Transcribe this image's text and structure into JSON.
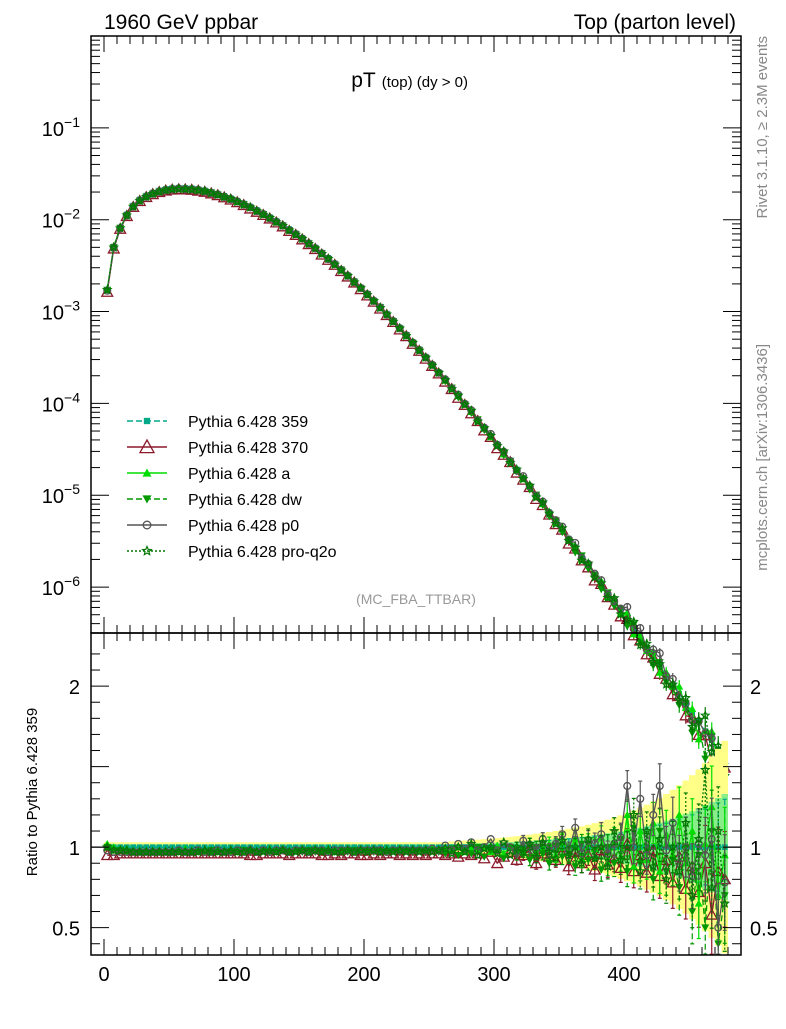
{
  "header": {
    "left": "1960 GeV ppbar",
    "right": "Top (parton level)"
  },
  "side_labels": {
    "rivet": "Rivet 3.1.10, ≥ 2.3M events",
    "mcplots": "mcplots.cern.ch [arXiv:1306.3436]"
  },
  "colors": {
    "359": "#00aa88",
    "370": "#8b1a2a",
    "a": "#00dd00",
    "dw": "#009900",
    "p0": "#555555",
    "pro-q2o": "#007700",
    "band_yellow": "#ffff88",
    "band_green": "#88ee88"
  },
  "chart_data": {
    "type": "line",
    "title": "pT",
    "title_sub": "(top) (dy > 0)",
    "watermark": "(MC_FBA_TTBAR)",
    "ylabel_ratio": "Ratio to Pythia 6.428 359",
    "x_ticks": [
      "0",
      "100",
      "200",
      "300",
      "400"
    ],
    "xlim": [
      -10,
      490
    ],
    "main_ylim_log10": [
      -6.5,
      0.0
    ],
    "main_y_ticks": [
      {
        "base": "10",
        "exp": "−1",
        "value": 0.1
      },
      {
        "base": "10",
        "exp": "−2",
        "value": 0.01
      },
      {
        "base": "10",
        "exp": "−3",
        "value": 0.001
      },
      {
        "base": "10",
        "exp": "−4",
        "value": 0.0001
      },
      {
        "base": "10",
        "exp": "−5",
        "value": 1e-05
      },
      {
        "base": "10",
        "exp": "−6",
        "value": 1e-06
      }
    ],
    "ratio_ylim": [
      0.33,
      2.33
    ],
    "ratio_y_ticks": [
      "0.5",
      "1",
      "2"
    ],
    "legend": [
      {
        "key": "359",
        "label": "Pythia 6.428 359"
      },
      {
        "key": "370",
        "label": "Pythia 6.428 370"
      },
      {
        "key": "a",
        "label": "Pythia 6.428 a"
      },
      {
        "key": "dw",
        "label": "Pythia 6.428 dw"
      },
      {
        "key": "p0",
        "label": "Pythia 6.428 p0"
      },
      {
        "key": "pro-q2o",
        "label": "Pythia 6.428 pro-q2o"
      }
    ],
    "x": [
      2.5,
      7.5,
      12.5,
      17.5,
      22.5,
      27.5,
      32.5,
      37.5,
      42.5,
      47.5,
      52.5,
      57.5,
      62.5,
      67.5,
      72.5,
      77.5,
      82.5,
      87.5,
      92.5,
      97.5,
      102.5,
      107.5,
      112.5,
      117.5,
      122.5,
      127.5,
      132.5,
      137.5,
      142.5,
      147.5,
      152.5,
      157.5,
      162.5,
      167.5,
      172.5,
      177.5,
      182.5,
      187.5,
      192.5,
      197.5,
      202.5,
      207.5,
      212.5,
      217.5,
      222.5,
      227.5,
      232.5,
      237.5,
      242.5,
      247.5,
      252.5,
      257.5,
      262.5,
      267.5,
      272.5,
      277.5,
      282.5,
      287.5,
      292.5,
      297.5,
      302.5,
      307.5,
      312.5,
      317.5,
      322.5,
      327.5,
      332.5,
      337.5,
      342.5,
      347.5,
      352.5,
      357.5,
      362.5,
      367.5,
      372.5,
      377.5,
      382.5,
      387.5,
      392.5,
      397.5,
      402.5,
      407.5,
      412.5,
      417.5,
      422.5,
      427.5,
      432.5,
      437.5,
      442.5,
      447.5,
      452.5,
      457.5,
      462.5,
      467.5,
      472.5,
      477.5
    ],
    "reference": [
      0.00172,
      0.0051,
      0.00826,
      0.0114,
      0.0143,
      0.0166,
      0.0183,
      0.0197,
      0.0208,
      0.0216,
      0.0221,
      0.0223,
      0.0222,
      0.022,
      0.0215,
      0.0209,
      0.0201,
      0.0192,
      0.0182,
      0.0172,
      0.0161,
      0.015,
      0.0139,
      0.0128,
      0.0117,
      0.0107,
      0.0097,
      0.00878,
      0.00791,
      0.0071,
      0.00634,
      0.00563,
      0.00498,
      0.00438,
      0.00384,
      0.00335,
      0.0029,
      0.0025,
      0.00215,
      0.00184,
      0.00157,
      0.00133,
      0.00113,
      0.00095,
      0.0008,
      0.00067,
      0.00056,
      0.000467,
      0.000388,
      0.000322,
      0.000266,
      0.00022,
      0.000181,
      0.000149,
      0.000122,
      0.0001,
      8.18e-05,
      6.68e-05,
      5.44e-05,
      4.43e-05,
      3.6e-05,
      2.92e-05,
      2.36e-05,
      1.91e-05,
      1.55e-05,
      1.25e-05,
      1.01e-05,
      8.12e-06,
      6.53e-06,
      5.25e-06,
      4.21e-06,
      3.37e-06,
      2.7e-06,
      2.16e-06,
      1.72e-06,
      1.37e-06,
      1.1e-06,
      8.7e-07,
      6.9e-07,
      5.5e-07,
      4.4e-07,
      3.5e-07,
      2.75e-07,
      2.2e-07,
      1.74e-07,
      1.38e-07,
      1.09e-07,
      8.7e-08,
      6.9e-08,
      5.4e-08,
      4.3e-08,
      3.4e-08,
      2.7e-08,
      2.15e-08,
      1.7e-08,
      1.35e-08
    ],
    "band_yellow_half": [
      0.03,
      0.03,
      0.03,
      0.03,
      0.03,
      0.03,
      0.03,
      0.03,
      0.03,
      0.03,
      0.03,
      0.03,
      0.03,
      0.03,
      0.03,
      0.03,
      0.03,
      0.03,
      0.03,
      0.03,
      0.03,
      0.03,
      0.03,
      0.03,
      0.03,
      0.03,
      0.03,
      0.03,
      0.03,
      0.03,
      0.03,
      0.03,
      0.03,
      0.03,
      0.03,
      0.03,
      0.03,
      0.03,
      0.03,
      0.03,
      0.03,
      0.03,
      0.03,
      0.03,
      0.03,
      0.03,
      0.03,
      0.03,
      0.03,
      0.03,
      0.03,
      0.03,
      0.032,
      0.035,
      0.038,
      0.041,
      0.044,
      0.047,
      0.05,
      0.053,
      0.056,
      0.06,
      0.064,
      0.068,
      0.073,
      0.078,
      0.083,
      0.088,
      0.094,
      0.1,
      0.107,
      0.114,
      0.122,
      0.13,
      0.139,
      0.149,
      0.16,
      0.171,
      0.184,
      0.197,
      0.212,
      0.228,
      0.245,
      0.264,
      0.284,
      0.306,
      0.33,
      0.356,
      0.384,
      0.414,
      0.447,
      0.483,
      0.522,
      0.564,
      0.61,
      0.66
    ],
    "band_green_half": [
      0.015,
      0.015,
      0.015,
      0.015,
      0.015,
      0.015,
      0.015,
      0.015,
      0.015,
      0.015,
      0.015,
      0.015,
      0.015,
      0.015,
      0.015,
      0.015,
      0.015,
      0.015,
      0.015,
      0.015,
      0.015,
      0.015,
      0.015,
      0.015,
      0.015,
      0.015,
      0.015,
      0.015,
      0.015,
      0.015,
      0.015,
      0.015,
      0.015,
      0.015,
      0.015,
      0.015,
      0.015,
      0.015,
      0.015,
      0.015,
      0.015,
      0.015,
      0.015,
      0.015,
      0.015,
      0.015,
      0.015,
      0.015,
      0.015,
      0.015,
      0.015,
      0.015,
      0.016,
      0.018,
      0.019,
      0.02,
      0.022,
      0.024,
      0.025,
      0.027,
      0.028,
      0.03,
      0.032,
      0.034,
      0.036,
      0.039,
      0.041,
      0.044,
      0.047,
      0.05,
      0.054,
      0.057,
      0.061,
      0.065,
      0.07,
      0.075,
      0.08,
      0.086,
      0.092,
      0.099,
      0.106,
      0.114,
      0.122,
      0.132,
      0.142,
      0.153,
      0.165,
      0.178,
      0.192,
      0.207,
      0.223,
      0.242,
      0.261,
      0.282,
      0.305,
      0.33
    ],
    "series": [
      {
        "key": "359",
        "name": "Pythia 6.428 359",
        "ratio": [
          1.0,
          1.0,
          1.0,
          1.0,
          1.0,
          1.0,
          1.0,
          1.0,
          1.0,
          1.0,
          1.0,
          1.0,
          1.0,
          1.0,
          1.0,
          1.0,
          1.0,
          1.0,
          1.0,
          1.0,
          1.0,
          1.0,
          1.0,
          1.0,
          1.0,
          1.0,
          1.0,
          1.0,
          1.0,
          1.0,
          1.0,
          1.0,
          1.0,
          1.0,
          1.0,
          1.0,
          1.0,
          1.0,
          1.0,
          1.0,
          1.0,
          1.0,
          1.0,
          1.0,
          1.0,
          1.0,
          1.0,
          1.0,
          1.0,
          1.0,
          1.0,
          1.0,
          1.0,
          1.0,
          1.0,
          1.0,
          1.0,
          1.0,
          1.0,
          1.0,
          1.0,
          1.0,
          1.0,
          1.0,
          1.0,
          1.0,
          1.0,
          1.0,
          1.0,
          1.0,
          1.0,
          1.0,
          1.0,
          1.0,
          1.0,
          1.0,
          1.0,
          1.0,
          1.0,
          1.0,
          1.0,
          1.0,
          1.0,
          1.0,
          1.0,
          1.0,
          1.0,
          1.0,
          1.0,
          1.0,
          1.0,
          1.0,
          1.0,
          1.0,
          1.0,
          1.0
        ]
      },
      {
        "key": "370",
        "name": "Pythia 6.428 370",
        "ratio": [
          0.95,
          0.95,
          0.96,
          0.96,
          0.96,
          0.96,
          0.96,
          0.96,
          0.96,
          0.96,
          0.96,
          0.96,
          0.96,
          0.96,
          0.96,
          0.96,
          0.96,
          0.96,
          0.96,
          0.96,
          0.96,
          0.96,
          0.95,
          0.95,
          0.96,
          0.96,
          0.96,
          0.96,
          0.95,
          0.96,
          0.96,
          0.96,
          0.96,
          0.95,
          0.95,
          0.96,
          0.95,
          0.96,
          0.96,
          0.95,
          0.95,
          0.96,
          0.95,
          0.96,
          0.96,
          0.95,
          0.96,
          0.95,
          0.96,
          0.95,
          0.96,
          0.96,
          0.95,
          0.96,
          0.94,
          0.96,
          0.95,
          0.96,
          0.93,
          0.97,
          0.9,
          0.94,
          0.97,
          0.92,
          0.95,
          0.98,
          0.9,
          0.96,
          0.94,
          0.92,
          1.0,
          0.88,
          0.97,
          0.9,
          0.95,
          0.86,
          0.98,
          0.89,
          0.93,
          0.87,
          1.02,
          0.85,
          0.95,
          0.84,
          0.98,
          0.82,
          0.92,
          0.78,
          0.94,
          0.74,
          0.88,
          0.72,
          0.9,
          0.58,
          0.85,
          0.8
        ]
      },
      {
        "key": "a",
        "name": "Pythia 6.428 a",
        "ratio": [
          1.02,
          1.0,
          0.99,
          0.99,
          0.98,
          0.98,
          0.98,
          0.98,
          0.98,
          0.98,
          0.98,
          0.98,
          0.99,
          0.98,
          0.98,
          0.98,
          0.98,
          0.98,
          0.98,
          0.98,
          0.98,
          0.98,
          0.98,
          0.98,
          0.98,
          0.99,
          0.98,
          0.99,
          0.98,
          0.98,
          0.99,
          0.98,
          0.99,
          0.98,
          0.99,
          0.98,
          0.98,
          0.99,
          0.98,
          0.98,
          0.99,
          0.98,
          0.98,
          0.99,
          0.98,
          0.99,
          0.98,
          0.98,
          0.99,
          0.98,
          0.99,
          0.98,
          0.99,
          0.98,
          1.0,
          0.97,
          0.99,
          0.98,
          1.0,
          0.97,
          1.01,
          0.96,
          1.0,
          0.98,
          0.97,
          1.02,
          0.96,
          0.99,
          1.02,
          0.95,
          1.03,
          0.97,
          1.05,
          0.93,
          1.02,
          0.99,
          1.06,
          0.9,
          1.04,
          0.94,
          1.2,
          0.88,
          1.1,
          0.92,
          1.15,
          0.85,
          1.08,
          0.95,
          1.2,
          0.9,
          1.1,
          0.65,
          1.02,
          1.25,
          0.7,
          0.95
        ]
      },
      {
        "key": "dw",
        "name": "Pythia 6.428 dw",
        "ratio": [
          1.0,
          0.98,
          0.98,
          0.97,
          0.97,
          0.97,
          0.97,
          0.97,
          0.97,
          0.97,
          0.97,
          0.97,
          0.97,
          0.97,
          0.97,
          0.97,
          0.98,
          0.97,
          0.97,
          0.97,
          0.97,
          0.98,
          0.97,
          0.97,
          0.98,
          0.97,
          0.97,
          0.98,
          0.97,
          0.98,
          0.97,
          0.98,
          0.97,
          0.98,
          0.97,
          0.97,
          0.98,
          0.97,
          0.98,
          0.97,
          0.98,
          0.97,
          0.98,
          0.97,
          0.98,
          0.97,
          0.98,
          0.97,
          0.98,
          0.97,
          0.98,
          0.97,
          0.96,
          0.99,
          0.95,
          0.98,
          0.96,
          1.0,
          0.94,
          0.98,
          0.97,
          0.93,
          1.0,
          0.95,
          0.98,
          0.92,
          1.0,
          0.96,
          0.9,
          1.01,
          0.94,
          0.96,
          0.88,
          1.02,
          0.92,
          0.98,
          0.86,
          1.0,
          0.9,
          1.05,
          0.85,
          1.12,
          0.9,
          0.98,
          0.8,
          1.1,
          0.85,
          0.92,
          0.75,
          1.0,
          0.6,
          0.95,
          0.5,
          1.1,
          0.4,
          0.7
        ]
      },
      {
        "key": "p0",
        "name": "Pythia 6.428 p0",
        "ratio": [
          0.98,
          0.97,
          0.97,
          0.97,
          0.97,
          0.97,
          0.97,
          0.97,
          0.97,
          0.97,
          0.97,
          0.98,
          0.97,
          0.97,
          0.98,
          0.97,
          0.97,
          0.98,
          0.97,
          0.97,
          0.98,
          0.97,
          0.98,
          0.97,
          0.98,
          0.97,
          0.98,
          0.98,
          0.97,
          0.98,
          0.98,
          0.97,
          0.98,
          0.98,
          0.97,
          0.98,
          0.98,
          0.98,
          0.97,
          0.98,
          0.98,
          0.98,
          0.98,
          0.97,
          0.98,
          0.98,
          0.98,
          0.98,
          0.98,
          0.98,
          0.99,
          0.98,
          1.01,
          0.98,
          1.02,
          0.99,
          1.03,
          0.98,
          1.0,
          1.05,
          0.98,
          1.02,
          1.0,
          0.97,
          1.04,
          1.0,
          0.98,
          1.05,
          0.98,
          1.02,
          1.08,
          0.98,
          1.12,
          0.96,
          1.04,
          1.02,
          1.08,
          0.96,
          1.02,
          1.06,
          1.38,
          1.0,
          1.3,
          0.95,
          1.2,
          1.38,
          0.98,
          1.15,
          0.9,
          1.0,
          0.82,
          1.02,
          0.95,
          1.05,
          0.5,
          0.78
        ]
      },
      {
        "key": "pro-q2o",
        "name": "Pythia 6.428 pro-q2o",
        "ratio": [
          1.0,
          0.98,
          0.98,
          0.98,
          0.97,
          0.97,
          0.97,
          0.97,
          0.97,
          0.97,
          0.97,
          0.97,
          0.97,
          0.97,
          0.97,
          0.98,
          0.97,
          0.97,
          0.97,
          0.98,
          0.97,
          0.97,
          0.98,
          0.97,
          0.97,
          0.98,
          0.97,
          0.98,
          0.97,
          0.97,
          0.98,
          0.97,
          0.98,
          0.97,
          0.98,
          0.97,
          0.97,
          0.98,
          0.97,
          0.98,
          0.97,
          0.98,
          0.97,
          0.98,
          0.97,
          0.98,
          0.97,
          0.98,
          0.97,
          0.98,
          0.97,
          0.98,
          0.99,
          0.96,
          1.0,
          0.97,
          1.02,
          0.95,
          0.99,
          1.0,
          0.96,
          1.03,
          0.95,
          1.0,
          0.97,
          1.02,
          0.94,
          1.03,
          0.97,
          0.93,
          1.04,
          0.95,
          1.0,
          0.9,
          1.05,
          0.93,
          1.0,
          0.88,
          1.1,
          0.92,
          1.0,
          1.2,
          0.85,
          1.1,
          0.88,
          1.05,
          0.8,
          1.0,
          0.85,
          1.15,
          0.7,
          1.05,
          1.48,
          0.75,
          1.1,
          0.65
        ]
      }
    ]
  }
}
